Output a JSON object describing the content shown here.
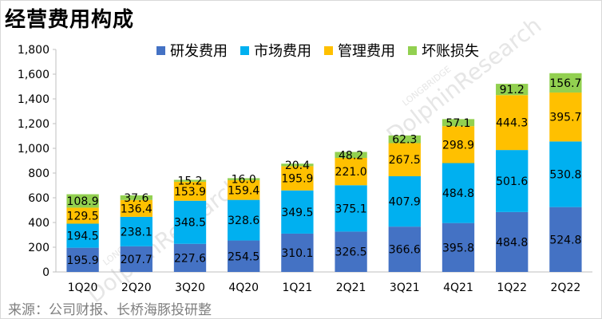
{
  "title": "经营费用构成",
  "source": "来源：公司财报、长桥海豚投研整",
  "watermark": {
    "brand": "DolphinResearch",
    "sub": "LONGBRIDGE"
  },
  "chart_data": {
    "type": "bar",
    "stacked": true,
    "categories": [
      "1Q20",
      "2Q20",
      "3Q20",
      "4Q20",
      "1Q21",
      "2Q21",
      "3Q21",
      "4Q21",
      "1Q22",
      "2Q22"
    ],
    "series": [
      {
        "name": "研发费用",
        "color": "#4472c4",
        "values": [
          195.9,
          207.7,
          227.6,
          254.5,
          310.1,
          326.5,
          366.6,
          395.8,
          484.8,
          524.8
        ]
      },
      {
        "name": "市场费用",
        "color": "#00b0f0",
        "values": [
          194.5,
          238.1,
          348.5,
          328.6,
          349.5,
          375.1,
          407.9,
          484.8,
          501.6,
          530.8
        ]
      },
      {
        "name": "管理费用",
        "color": "#ffc000",
        "values": [
          129.5,
          136.4,
          153.9,
          159.4,
          195.9,
          221.0,
          267.5,
          298.9,
          444.3,
          395.7
        ]
      },
      {
        "name": "坏账损失",
        "color": "#92d050",
        "values": [
          108.9,
          37.6,
          15.2,
          16.0,
          20.4,
          48.2,
          62.3,
          57.1,
          91.2,
          156.7
        ]
      }
    ],
    "ylim": [
      0,
      1800
    ],
    "yticks": [
      0,
      200,
      400,
      600,
      800,
      1000,
      1200,
      1400,
      1600,
      1800
    ],
    "ytick_labels": [
      "0",
      "200",
      "400",
      "600",
      "800",
      "1,000",
      "1,200",
      "1,400",
      "1,600",
      "1,800"
    ],
    "value_labels": [
      [
        "195.9",
        "207.7",
        "227.6",
        "254.5",
        "310.1",
        "326.5",
        "366.6",
        "395.8",
        "484.8",
        "524.8"
      ],
      [
        "194.5",
        "238.1",
        "348.5",
        "328.6",
        "349.5",
        "375.1",
        "407.9",
        "484.8",
        "501.6",
        "530.8"
      ],
      [
        "129.5",
        "136.4",
        "153.9",
        "159.4",
        "195.9",
        "221.0",
        "267.5",
        "298.9",
        "444.3",
        "395.7"
      ],
      [
        "108.9",
        "37.6",
        "15.2",
        "16.0",
        "20.4",
        "48.2",
        "62.3",
        "57.1",
        "91.2",
        "156.7"
      ]
    ],
    "legend_position": "top-right",
    "grid": false
  }
}
